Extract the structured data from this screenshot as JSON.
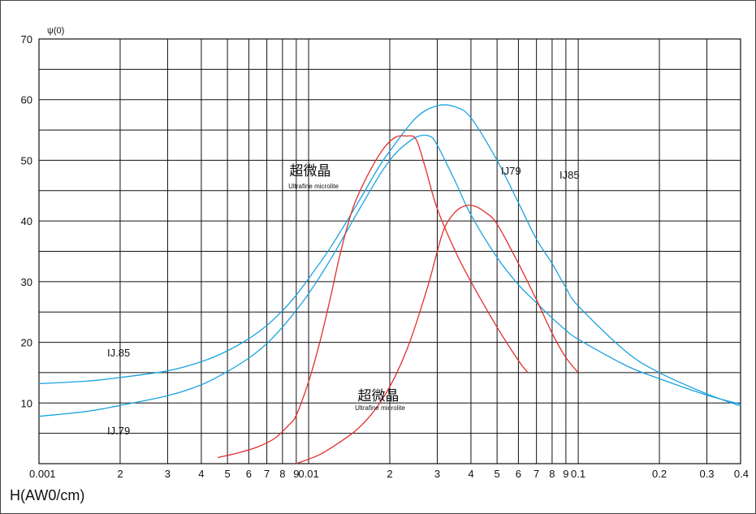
{
  "chart_data": {
    "type": "line",
    "ylabel": "ψ(0)",
    "xlabel": "H(AW0/cm)",
    "x_scale": "log",
    "xlim": [
      0.001,
      0.4
    ],
    "ylim": [
      0,
      70
    ],
    "grid": true,
    "y_ticks": [
      10,
      20,
      30,
      40,
      50,
      60,
      70
    ],
    "x_tick_labels": [
      {
        "x": 0.001,
        "label": "0.001"
      },
      {
        "x": 0.002,
        "label": "2"
      },
      {
        "x": 0.003,
        "label": "3"
      },
      {
        "x": 0.004,
        "label": "4"
      },
      {
        "x": 0.005,
        "label": "5"
      },
      {
        "x": 0.006,
        "label": "6"
      },
      {
        "x": 0.007,
        "label": "7"
      },
      {
        "x": 0.008,
        "label": "8"
      },
      {
        "x": 0.009,
        "label": "9"
      },
      {
        "x": 0.01,
        "label": "0.01"
      },
      {
        "x": 0.02,
        "label": "2"
      },
      {
        "x": 0.03,
        "label": "3"
      },
      {
        "x": 0.04,
        "label": "4"
      },
      {
        "x": 0.05,
        "label": "5"
      },
      {
        "x": 0.06,
        "label": "6"
      },
      {
        "x": 0.07,
        "label": "7"
      },
      {
        "x": 0.08,
        "label": "8"
      },
      {
        "x": 0.09,
        "label": "9"
      },
      {
        "x": 0.1,
        "label": "0.1"
      },
      {
        "x": 0.2,
        "label": "0.2"
      },
      {
        "x": 0.3,
        "label": "0.3"
      },
      {
        "x": 0.4,
        "label": "0.4"
      }
    ],
    "grid_x": [
      0.001,
      0.002,
      0.003,
      0.004,
      0.005,
      0.006,
      0.007,
      0.008,
      0.009,
      0.01,
      0.02,
      0.03,
      0.04,
      0.05,
      0.06,
      0.07,
      0.08,
      0.09,
      0.1,
      0.2,
      0.3,
      0.4
    ],
    "grid_y": [
      5,
      10,
      15,
      20,
      25,
      30,
      35,
      40,
      45,
      50,
      55,
      60,
      65,
      70
    ],
    "series": [
      {
        "name": "IJ.85",
        "color": "#1aa3e0",
        "points": [
          [
            0.001,
            13.2
          ],
          [
            0.0015,
            13.6
          ],
          [
            0.002,
            14.2
          ],
          [
            0.003,
            15.3
          ],
          [
            0.004,
            16.8
          ],
          [
            0.005,
            18.6
          ],
          [
            0.006,
            20.6
          ],
          [
            0.007,
            22.8
          ],
          [
            0.008,
            25.2
          ],
          [
            0.009,
            27.8
          ],
          [
            0.01,
            30.5
          ],
          [
            0.012,
            35.5
          ],
          [
            0.015,
            42.5
          ],
          [
            0.018,
            48.5
          ],
          [
            0.02,
            51.5
          ],
          [
            0.025,
            57.0
          ],
          [
            0.03,
            59.0
          ],
          [
            0.035,
            58.8
          ],
          [
            0.04,
            57.0
          ],
          [
            0.05,
            50.0
          ],
          [
            0.06,
            43.0
          ],
          [
            0.07,
            37.0
          ],
          [
            0.08,
            33.0
          ],
          [
            0.09,
            29.0
          ],
          [
            0.1,
            26.0
          ],
          [
            0.15,
            18.5
          ],
          [
            0.2,
            15.0
          ],
          [
            0.3,
            11.5
          ],
          [
            0.4,
            9.5
          ]
        ]
      },
      {
        "name": "IJ79",
        "color": "#1aa3e0",
        "points": [
          [
            0.001,
            7.8
          ],
          [
            0.0015,
            8.6
          ],
          [
            0.002,
            9.6
          ],
          [
            0.003,
            11.2
          ],
          [
            0.004,
            13.0
          ],
          [
            0.005,
            15.2
          ],
          [
            0.006,
            17.4
          ],
          [
            0.007,
            19.8
          ],
          [
            0.008,
            22.5
          ],
          [
            0.009,
            25.3
          ],
          [
            0.01,
            28.0
          ],
          [
            0.012,
            33.5
          ],
          [
            0.015,
            41.0
          ],
          [
            0.018,
            47.0
          ],
          [
            0.02,
            50.0
          ],
          [
            0.022,
            52.0
          ],
          [
            0.025,
            53.8
          ],
          [
            0.028,
            54.0
          ],
          [
            0.03,
            52.5
          ],
          [
            0.035,
            46.5
          ],
          [
            0.04,
            41.0
          ],
          [
            0.05,
            34.0
          ],
          [
            0.06,
            29.5
          ],
          [
            0.07,
            26.5
          ],
          [
            0.08,
            24.0
          ],
          [
            0.09,
            22.0
          ],
          [
            0.1,
            20.5
          ],
          [
            0.15,
            16.2
          ],
          [
            0.2,
            14.0
          ],
          [
            0.3,
            11.3
          ],
          [
            0.4,
            9.8
          ]
        ]
      },
      {
        "name": "超微晶 Ultrafine microlite (upper)",
        "color": "#e0302a",
        "points": [
          [
            0.0046,
            1.0
          ],
          [
            0.0055,
            1.8
          ],
          [
            0.0065,
            2.8
          ],
          [
            0.0075,
            4.2
          ],
          [
            0.0085,
            6.5
          ],
          [
            0.009,
            8.0
          ],
          [
            0.01,
            13.5
          ],
          [
            0.011,
            20.0
          ],
          [
            0.012,
            27.0
          ],
          [
            0.013,
            34.0
          ],
          [
            0.014,
            39.5
          ],
          [
            0.015,
            43.5
          ],
          [
            0.017,
            48.5
          ],
          [
            0.019,
            52.0
          ],
          [
            0.021,
            53.8
          ],
          [
            0.023,
            54.0
          ],
          [
            0.025,
            53.5
          ],
          [
            0.027,
            49.0
          ],
          [
            0.03,
            42.0
          ],
          [
            0.035,
            35.0
          ],
          [
            0.04,
            30.0
          ],
          [
            0.05,
            22.5
          ],
          [
            0.06,
            17.0
          ],
          [
            0.065,
            15.0
          ]
        ]
      },
      {
        "name": "超微晶 Ultrafine microlite (lower)",
        "color": "#e0302a",
        "points": [
          [
            0.009,
            0.0
          ],
          [
            0.011,
            1.5
          ],
          [
            0.013,
            3.5
          ],
          [
            0.015,
            5.5
          ],
          [
            0.017,
            8.0
          ],
          [
            0.019,
            11.0
          ],
          [
            0.021,
            14.5
          ],
          [
            0.023,
            18.5
          ],
          [
            0.025,
            23.0
          ],
          [
            0.028,
            30.0
          ],
          [
            0.03,
            35.0
          ],
          [
            0.032,
            39.0
          ],
          [
            0.035,
            41.5
          ],
          [
            0.038,
            42.5
          ],
          [
            0.041,
            42.5
          ],
          [
            0.045,
            41.5
          ],
          [
            0.05,
            39.5
          ],
          [
            0.06,
            33.0
          ],
          [
            0.07,
            27.0
          ],
          [
            0.08,
            21.5
          ],
          [
            0.09,
            17.5
          ],
          [
            0.1,
            15.0
          ]
        ]
      }
    ],
    "annotations": [
      {
        "text": "IJ.85"
      },
      {
        "text": "IJ.79"
      },
      {
        "text": "IJ79"
      },
      {
        "text": "IJ85"
      },
      {
        "text": "超微晶"
      },
      {
        "text": "Ultrafine microlite"
      },
      {
        "text": "超微晶"
      },
      {
        "text": "Ultrafine microlite"
      }
    ]
  }
}
